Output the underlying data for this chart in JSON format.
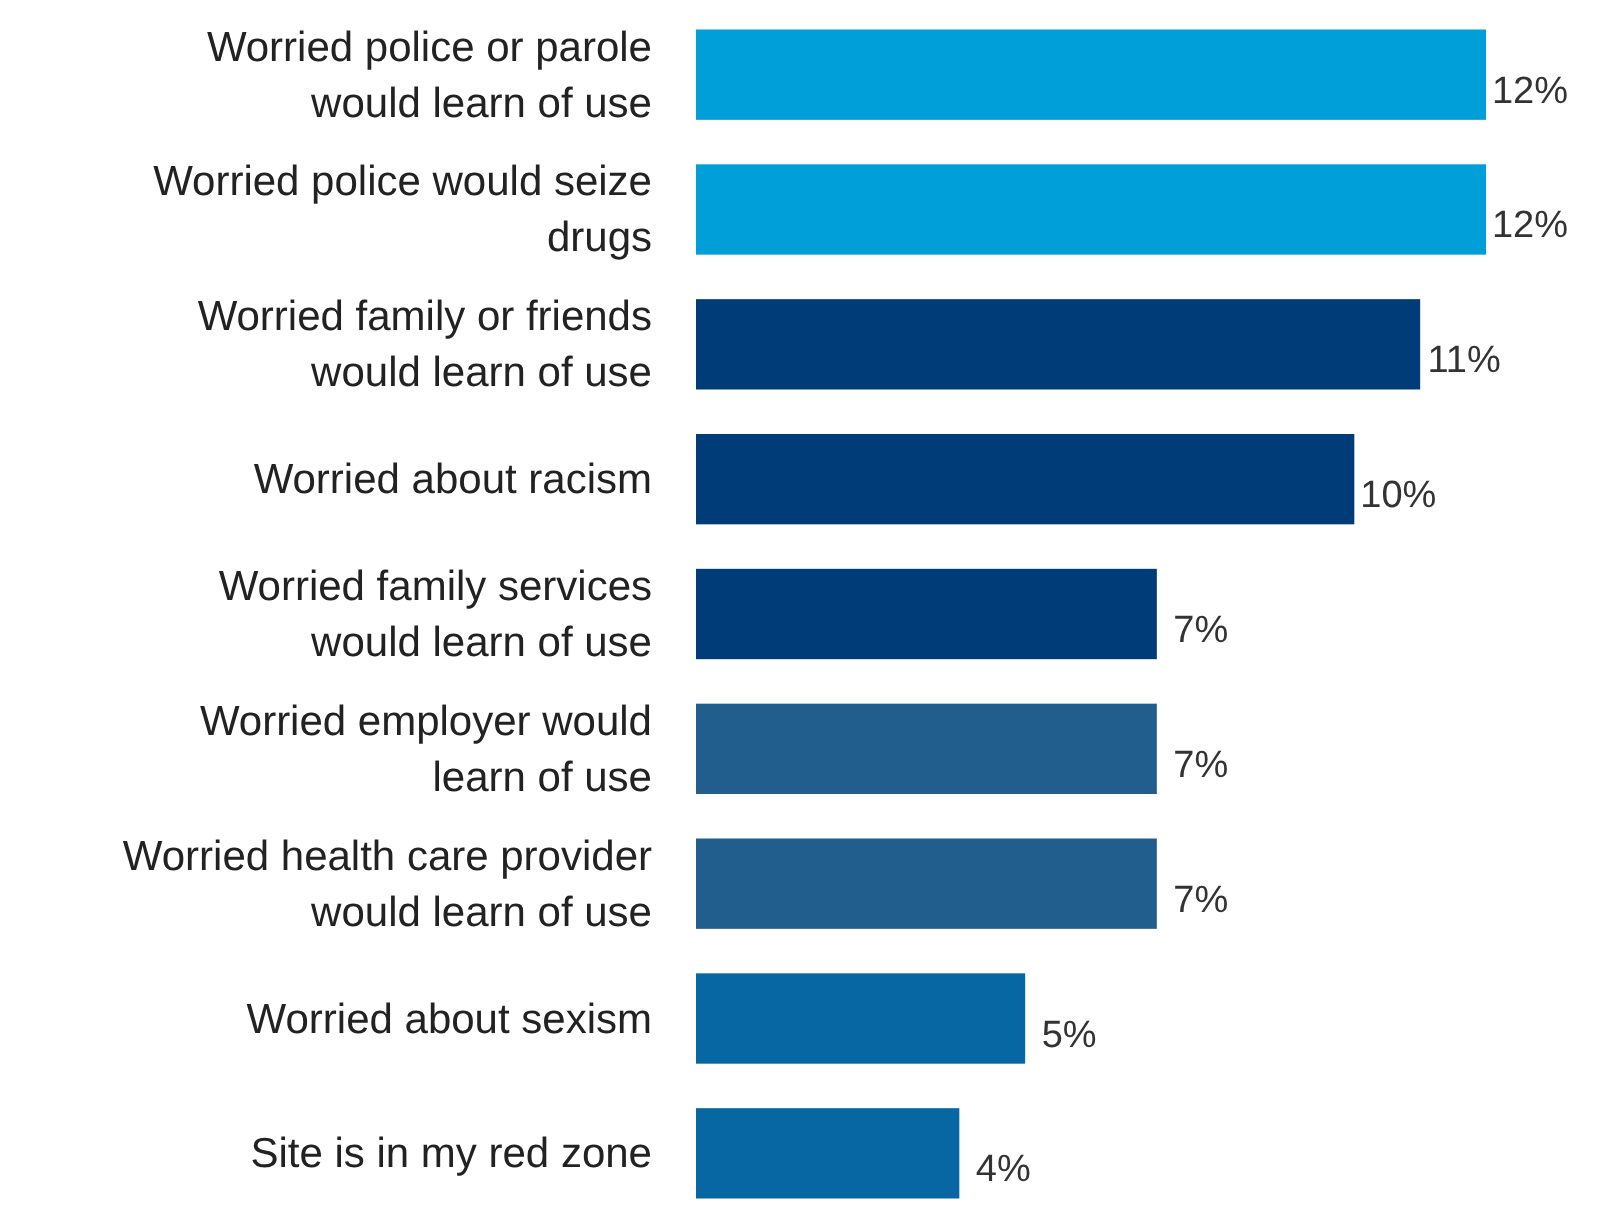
{
  "chart_data": {
    "type": "bar",
    "orientation": "horizontal",
    "value_labels": [
      "12%",
      "12%",
      "11%",
      "10%",
      "7%",
      "7%",
      "7%",
      "5%",
      "4%"
    ],
    "categories": [
      "Worried police or parole would learn of use",
      "Worried police would seize drugs",
      "Worried family or friends would learn of use",
      "Worried about racism",
      "Worried family services would learn of use",
      "Worried employer would learn of use",
      "Worried health care provider would learn of use",
      "Worried about sexism",
      "Site is in my red zone"
    ],
    "values": [
      12,
      12,
      11,
      10,
      7,
      7,
      7,
      5,
      4
    ],
    "colors": [
      "#009fda",
      "#009fda",
      "#003c78",
      "#003c78",
      "#003c78",
      "#215e8e",
      "#215e8e",
      "#0767a3",
      "#0767a3"
    ]
  }
}
